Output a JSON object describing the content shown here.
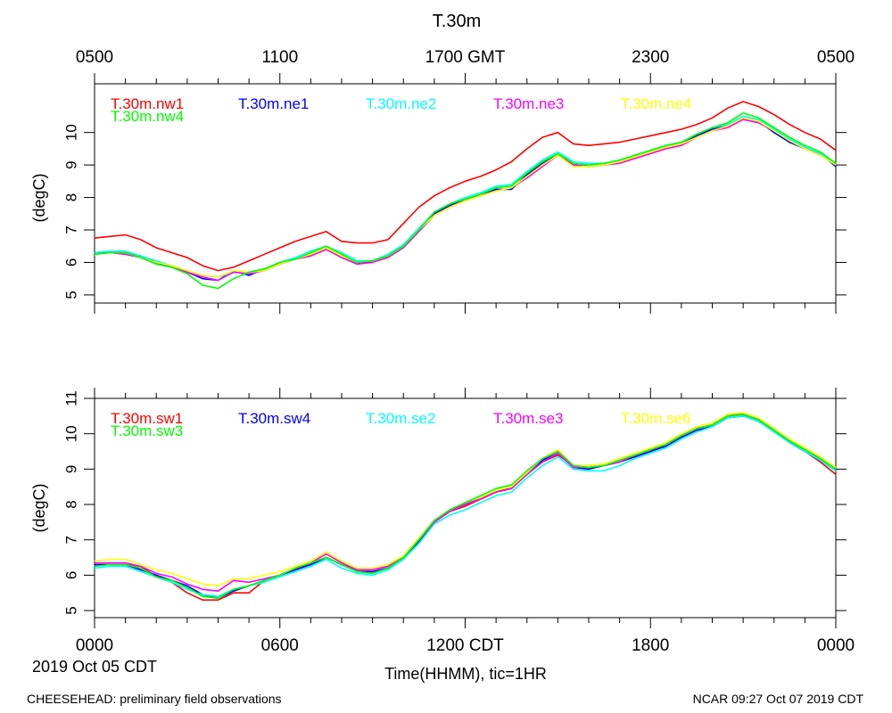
{
  "page": {
    "title": "T.30m",
    "footer_left": "CHEESEHEAD: preliminary field observations",
    "footer_right": "NCAR 09:27 Oct 07 2019 CDT",
    "date_label": "2019 Oct 05 CDT",
    "xlabel": "Time(HHMM), tic=1HR"
  },
  "colors": {
    "red": "#ff0000",
    "blue": "#0000ff",
    "cyan": "#00ffff",
    "magenta": "#ff00ff",
    "yellow": "#ffff00",
    "green": "#00ff00"
  },
  "chart_data": [
    {
      "type": "line",
      "panel": "top",
      "title": "T.30m",
      "ylabel": "(degC)",
      "xlim": [
        0,
        24
      ],
      "ylim": [
        4.75,
        11.5
      ],
      "yticks": [
        5,
        6,
        7,
        8,
        9,
        10
      ],
      "x_top_ticks": [
        {
          "x": 0,
          "label": "0500"
        },
        {
          "x": 6,
          "label": "1100"
        },
        {
          "x": 12,
          "label": "1700 GMT"
        },
        {
          "x": 18,
          "label": "2300"
        },
        {
          "x": 24,
          "label": "0500"
        }
      ],
      "x": [
        0,
        0.5,
        1,
        1.5,
        2,
        2.5,
        3,
        3.5,
        4,
        4.5,
        5,
        5.5,
        6,
        6.5,
        7,
        7.5,
        8,
        8.5,
        9,
        9.5,
        10,
        10.5,
        11,
        11.5,
        12,
        12.5,
        13,
        13.5,
        14,
        14.5,
        15,
        15.5,
        16,
        16.5,
        17,
        17.5,
        18,
        18.5,
        19,
        19.5,
        20,
        20.5,
        21,
        21.5,
        22,
        22.5,
        23,
        23.5,
        24
      ],
      "series": [
        {
          "name": "T.30m.nw1",
          "color": "#ff0000",
          "values": [
            6.75,
            6.8,
            6.85,
            6.7,
            6.45,
            6.3,
            6.15,
            5.9,
            5.75,
            5.85,
            6.05,
            6.25,
            6.45,
            6.65,
            6.8,
            6.95,
            6.65,
            6.6,
            6.6,
            6.7,
            7.2,
            7.7,
            8.05,
            8.3,
            8.5,
            8.65,
            8.85,
            9.1,
            9.5,
            9.85,
            10.0,
            9.65,
            9.6,
            9.65,
            9.7,
            9.8,
            9.9,
            10.0,
            10.1,
            10.25,
            10.45,
            10.75,
            10.95,
            10.8,
            10.55,
            10.25,
            10.0,
            9.8,
            9.45
          ]
        },
        {
          "name": "T.30m.ne1",
          "color": "#0000ff",
          "values": [
            6.3,
            6.3,
            6.3,
            6.2,
            6.0,
            5.85,
            5.7,
            5.5,
            5.45,
            5.75,
            5.6,
            5.8,
            5.95,
            6.1,
            6.25,
            6.45,
            6.2,
            5.95,
            6.05,
            6.2,
            6.55,
            7.0,
            7.5,
            7.75,
            7.95,
            8.05,
            8.25,
            8.25,
            8.7,
            9.05,
            9.3,
            9.0,
            8.95,
            9.0,
            9.1,
            9.25,
            9.4,
            9.55,
            9.65,
            9.9,
            10.1,
            10.2,
            10.45,
            10.35,
            10.0,
            9.7,
            9.5,
            9.35,
            8.95
          ]
        },
        {
          "name": "T.30m.ne2",
          "color": "#00ffff",
          "values": [
            6.3,
            6.35,
            6.35,
            6.2,
            6.05,
            5.9,
            5.75,
            5.6,
            5.55,
            5.7,
            5.7,
            5.8,
            6.0,
            6.15,
            6.35,
            6.5,
            6.3,
            6.05,
            6.05,
            6.25,
            6.55,
            7.05,
            7.55,
            7.8,
            8.0,
            8.15,
            8.35,
            8.4,
            8.8,
            9.15,
            9.4,
            9.1,
            9.05,
            9.05,
            9.15,
            9.3,
            9.45,
            9.6,
            9.7,
            9.95,
            10.15,
            10.25,
            10.5,
            10.4,
            10.1,
            9.8,
            9.55,
            9.35,
            9.05
          ]
        },
        {
          "name": "T.30m.ne3",
          "color": "#ff00ff",
          "values": [
            6.25,
            6.3,
            6.25,
            6.15,
            5.95,
            5.85,
            5.7,
            5.55,
            5.45,
            5.7,
            5.65,
            5.75,
            5.95,
            6.1,
            6.2,
            6.4,
            6.15,
            5.95,
            6.0,
            6.15,
            6.45,
            6.95,
            7.45,
            7.7,
            7.9,
            8.05,
            8.2,
            8.3,
            8.6,
            8.95,
            9.3,
            9.0,
            8.95,
            9.0,
            9.05,
            9.2,
            9.35,
            9.5,
            9.6,
            9.85,
            10.05,
            10.15,
            10.4,
            10.3,
            10.05,
            9.75,
            9.5,
            9.3,
            9.0
          ]
        },
        {
          "name": "T.30m.ne4",
          "color": "#ffff00",
          "values": [
            6.25,
            6.3,
            6.3,
            6.15,
            6.0,
            5.9,
            5.75,
            5.6,
            5.55,
            5.75,
            5.7,
            5.75,
            5.95,
            6.1,
            6.25,
            6.45,
            6.2,
            6.0,
            6.05,
            6.2,
            6.5,
            7.0,
            7.45,
            7.7,
            7.9,
            8.05,
            8.2,
            8.3,
            8.65,
            9.0,
            9.3,
            8.95,
            8.95,
            9.0,
            9.1,
            9.25,
            9.4,
            9.55,
            9.65,
            9.85,
            10.05,
            10.2,
            10.45,
            10.35,
            10.05,
            9.75,
            9.5,
            9.3,
            9.0
          ]
        },
        {
          "name": "T.30m.nw4",
          "color": "#00ff00",
          "values": [
            6.25,
            6.3,
            6.3,
            6.15,
            5.95,
            5.85,
            5.65,
            5.3,
            5.2,
            5.5,
            5.7,
            5.8,
            6.0,
            6.1,
            6.3,
            6.5,
            6.25,
            6.0,
            6.05,
            6.2,
            6.5,
            7.0,
            7.55,
            7.8,
            7.95,
            8.1,
            8.3,
            8.35,
            8.75,
            9.1,
            9.35,
            9.05,
            9.0,
            9.05,
            9.15,
            9.3,
            9.45,
            9.6,
            9.7,
            9.95,
            10.15,
            10.3,
            10.6,
            10.45,
            10.15,
            9.85,
            9.6,
            9.4,
            9.05
          ]
        }
      ]
    },
    {
      "type": "line",
      "panel": "bottom",
      "ylabel": "(degC)",
      "xlim": [
        0,
        24
      ],
      "ylim": [
        4.8,
        11
      ],
      "yticks": [
        5,
        6,
        7,
        8,
        9,
        10,
        11
      ],
      "x_bottom_ticks": [
        {
          "x": 0,
          "label": "0000"
        },
        {
          "x": 6,
          "label": "0600"
        },
        {
          "x": 12,
          "label": "1200 CDT"
        },
        {
          "x": 18,
          "label": "1800"
        },
        {
          "x": 24,
          "label": "0000"
        }
      ],
      "x": [
        0,
        0.5,
        1,
        1.5,
        2,
        2.5,
        3,
        3.5,
        4,
        4.5,
        5,
        5.5,
        6,
        6.5,
        7,
        7.5,
        8,
        8.5,
        9,
        9.5,
        10,
        10.5,
        11,
        11.5,
        12,
        12.5,
        13,
        13.5,
        14,
        14.5,
        15,
        15.5,
        16,
        16.5,
        17,
        17.5,
        18,
        18.5,
        19,
        19.5,
        20,
        20.5,
        21,
        21.5,
        22,
        22.5,
        23,
        23.5,
        24
      ],
      "series": [
        {
          "name": "T.30m.sw1",
          "color": "#ff0000",
          "values": [
            6.3,
            6.3,
            6.3,
            6.25,
            5.95,
            5.8,
            5.5,
            5.3,
            5.3,
            5.5,
            5.5,
            5.85,
            6.0,
            6.15,
            6.35,
            6.5,
            6.3,
            6.15,
            6.15,
            6.25,
            6.5,
            6.95,
            7.5,
            7.8,
            7.95,
            8.15,
            8.35,
            8.5,
            8.85,
            9.2,
            9.4,
            9.1,
            9.05,
            9.1,
            9.2,
            9.35,
            9.5,
            9.7,
            9.95,
            10.15,
            10.25,
            10.55,
            10.55,
            10.4,
            10.1,
            9.75,
            9.5,
            9.2,
            8.85
          ]
        },
        {
          "name": "T.30m.sw4",
          "color": "#0000ff",
          "values": [
            6.3,
            6.3,
            6.3,
            6.15,
            6.0,
            5.85,
            5.7,
            5.45,
            5.35,
            5.55,
            5.7,
            5.85,
            6.0,
            6.15,
            6.3,
            6.5,
            6.3,
            6.1,
            6.1,
            6.2,
            6.45,
            6.95,
            7.5,
            7.85,
            8.0,
            8.2,
            8.35,
            8.45,
            8.85,
            9.25,
            9.45,
            9.05,
            9.0,
            9.1,
            9.2,
            9.35,
            9.5,
            9.65,
            9.9,
            10.1,
            10.2,
            10.45,
            10.5,
            10.35,
            10.1,
            9.75,
            9.5,
            9.25,
            8.95
          ]
        },
        {
          "name": "T.30m.se2",
          "color": "#00ffff",
          "values": [
            6.2,
            6.25,
            6.25,
            6.1,
            5.95,
            5.8,
            5.6,
            5.45,
            5.4,
            5.6,
            5.7,
            5.8,
            5.95,
            6.1,
            6.25,
            6.45,
            6.2,
            6.05,
            6.0,
            6.15,
            6.45,
            6.9,
            7.45,
            7.7,
            7.85,
            8.05,
            8.25,
            8.35,
            8.75,
            9.1,
            9.35,
            9.0,
            8.95,
            8.95,
            9.1,
            9.3,
            9.45,
            9.6,
            9.85,
            10.05,
            10.2,
            10.45,
            10.5,
            10.35,
            10.05,
            9.75,
            9.5,
            9.25,
            8.95
          ]
        },
        {
          "name": "T.30m.se3",
          "color": "#ff00ff",
          "values": [
            6.35,
            6.35,
            6.35,
            6.25,
            6.05,
            5.95,
            5.75,
            5.6,
            5.55,
            5.85,
            5.8,
            5.9,
            6.0,
            6.2,
            6.35,
            6.6,
            6.35,
            6.15,
            6.15,
            6.25,
            6.5,
            7.0,
            7.5,
            7.8,
            8.0,
            8.15,
            8.35,
            8.45,
            8.85,
            9.2,
            9.45,
            9.05,
            9.05,
            9.1,
            9.2,
            9.4,
            9.55,
            9.7,
            9.95,
            10.15,
            10.25,
            10.5,
            10.55,
            10.4,
            10.1,
            9.8,
            9.55,
            9.3,
            9.0
          ]
        },
        {
          "name": "T.30m.se6",
          "color": "#ffff00",
          "values": [
            6.4,
            6.45,
            6.45,
            6.3,
            6.15,
            6.05,
            5.9,
            5.75,
            5.7,
            5.9,
            5.9,
            6.0,
            6.1,
            6.25,
            6.4,
            6.65,
            6.4,
            6.2,
            6.2,
            6.3,
            6.55,
            7.05,
            7.55,
            7.85,
            8.05,
            8.2,
            8.4,
            8.5,
            8.9,
            9.3,
            9.55,
            9.1,
            9.1,
            9.15,
            9.3,
            9.45,
            9.6,
            9.75,
            10.0,
            10.2,
            10.3,
            10.55,
            10.6,
            10.45,
            10.15,
            9.85,
            9.6,
            9.35,
            9.05
          ]
        },
        {
          "name": "T.30m.sw3",
          "color": "#00ff00",
          "values": [
            6.25,
            6.3,
            6.3,
            6.2,
            5.95,
            5.85,
            5.65,
            5.4,
            5.35,
            5.6,
            5.7,
            5.85,
            6.0,
            6.2,
            6.35,
            6.5,
            6.3,
            6.1,
            6.05,
            6.2,
            6.5,
            7.0,
            7.55,
            7.85,
            8.05,
            8.25,
            8.45,
            8.55,
            8.95,
            9.3,
            9.5,
            9.1,
            9.05,
            9.1,
            9.25,
            9.4,
            9.55,
            9.7,
            9.95,
            10.15,
            10.25,
            10.5,
            10.55,
            10.4,
            10.1,
            9.8,
            9.55,
            9.3,
            9.0
          ]
        }
      ]
    }
  ]
}
